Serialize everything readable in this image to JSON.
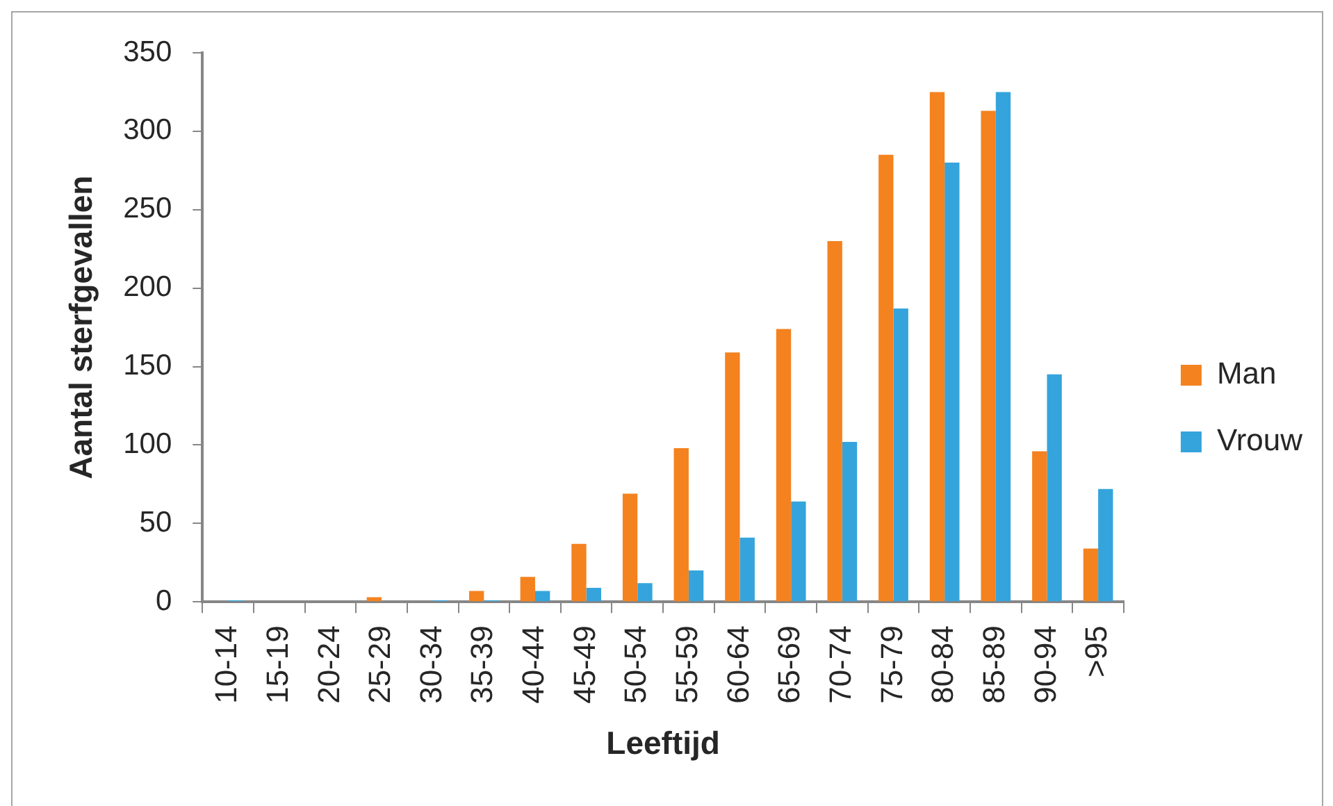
{
  "chart_data": {
    "type": "bar",
    "xlabel": "Leeftijd",
    "ylabel": "Aantal sterfgevallen",
    "categories": [
      "10-14",
      "15-19",
      "20-24",
      "25-29",
      "30-34",
      "35-39",
      "40-44",
      "45-49",
      "50-54",
      "55-59",
      "60-64",
      "65-69",
      "70-74",
      "75-79",
      "80-84",
      "85-89",
      "90-94",
      ">95"
    ],
    "series": [
      {
        "name": "Man",
        "color": "#f4821f",
        "values": [
          0,
          0,
          0,
          3,
          0,
          7,
          16,
          37,
          69,
          98,
          159,
          174,
          230,
          285,
          325,
          313,
          96,
          34
        ]
      },
      {
        "name": "Vrouw",
        "color": "#35a4dc",
        "values": [
          1,
          0,
          0,
          0,
          1,
          1,
          7,
          9,
          12,
          20,
          41,
          64,
          102,
          187,
          280,
          325,
          145,
          72
        ]
      }
    ],
    "ylim": [
      0,
      350
    ],
    "yticks": [
      0,
      50,
      100,
      150,
      200,
      250,
      300,
      350
    ],
    "legend": "right"
  }
}
